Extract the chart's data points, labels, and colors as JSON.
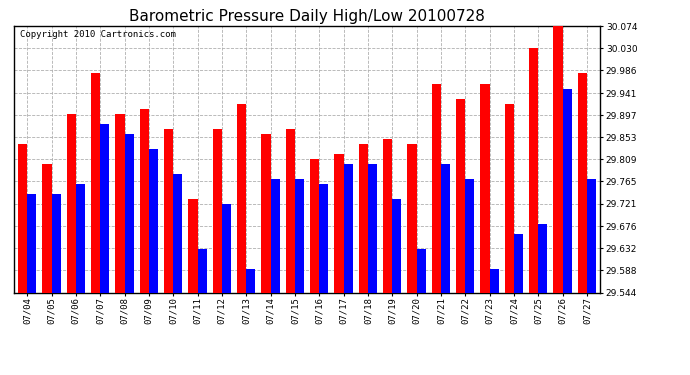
{
  "title": "Barometric Pressure Daily High/Low 20100728",
  "copyright": "Copyright 2010 Cartronics.com",
  "dates": [
    "07/04",
    "07/05",
    "07/06",
    "07/07",
    "07/08",
    "07/09",
    "07/10",
    "07/11",
    "07/12",
    "07/13",
    "07/14",
    "07/15",
    "07/16",
    "07/17",
    "07/18",
    "07/19",
    "07/20",
    "07/21",
    "07/22",
    "07/23",
    "07/24",
    "07/25",
    "07/26",
    "07/27"
  ],
  "highs": [
    29.84,
    29.8,
    29.9,
    29.98,
    29.9,
    29.91,
    29.87,
    29.73,
    29.87,
    29.92,
    29.86,
    29.87,
    29.81,
    29.82,
    29.84,
    29.85,
    29.84,
    29.96,
    29.93,
    29.96,
    29.92,
    30.03,
    30.074,
    29.98
  ],
  "lows": [
    29.74,
    29.74,
    29.76,
    29.88,
    29.86,
    29.83,
    29.78,
    29.63,
    29.72,
    29.59,
    29.77,
    29.77,
    29.76,
    29.8,
    29.8,
    29.73,
    29.63,
    29.8,
    29.77,
    29.59,
    29.66,
    29.68,
    29.95,
    29.77
  ],
  "ymin": 29.544,
  "ymax": 30.074,
  "yticks": [
    29.544,
    29.588,
    29.632,
    29.676,
    29.721,
    29.765,
    29.809,
    29.853,
    29.897,
    29.941,
    29.986,
    30.03,
    30.074
  ],
  "high_color": "#ff0000",
  "low_color": "#0000ff",
  "background_color": "#ffffff",
  "grid_color": "#b0b0b0",
  "title_fontsize": 11,
  "copyright_fontsize": 6.5,
  "tick_fontsize": 6.5,
  "bar_width": 0.38
}
